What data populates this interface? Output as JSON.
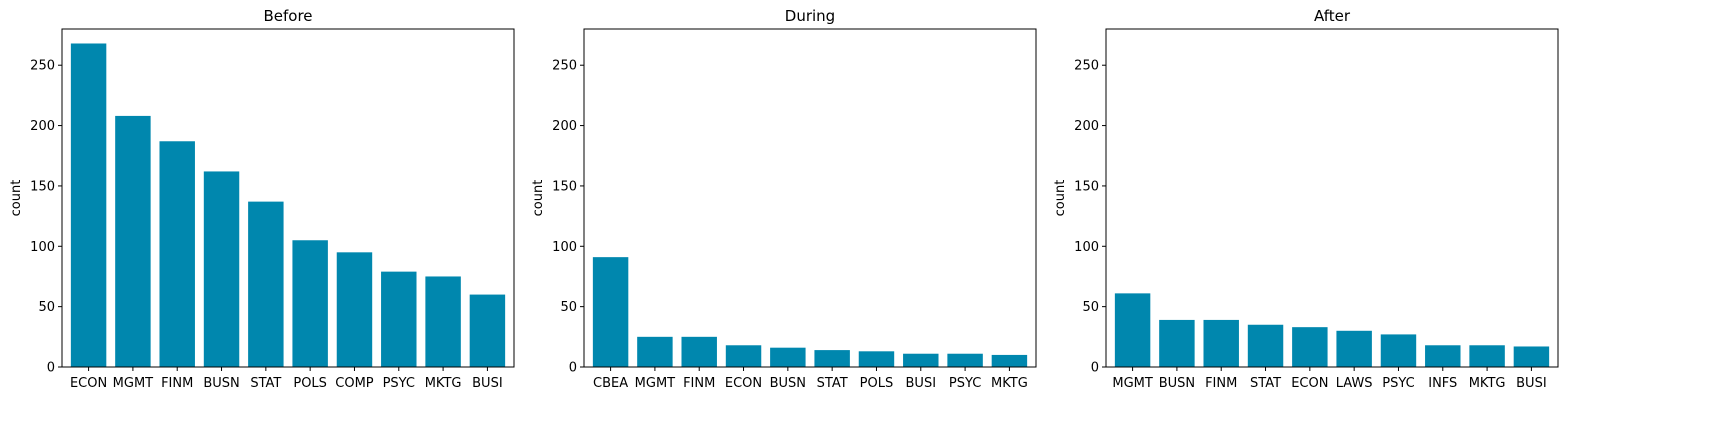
{
  "chart_data": [
    {
      "type": "bar",
      "title": "Before",
      "xlabel": "",
      "ylabel": "count",
      "ylim": [
        0,
        280
      ],
      "yticks": [
        0,
        50,
        100,
        150,
        200,
        250
      ],
      "bar_color": "#0087ae",
      "categories": [
        "ECON",
        "MGMT",
        "FINM",
        "BUSN",
        "STAT",
        "POLS",
        "COMP",
        "PSYC",
        "MKTG",
        "BUSI"
      ],
      "values": [
        268,
        208,
        187,
        162,
        137,
        105,
        95,
        79,
        75,
        60
      ]
    },
    {
      "type": "bar",
      "title": "During",
      "xlabel": "",
      "ylabel": "count",
      "ylim": [
        0,
        280
      ],
      "yticks": [
        0,
        50,
        100,
        150,
        200,
        250
      ],
      "bar_color": "#0087ae",
      "categories": [
        "CBEA",
        "MGMT",
        "FINM",
        "ECON",
        "BUSN",
        "STAT",
        "POLS",
        "BUSI",
        "PSYC",
        "MKTG"
      ],
      "values": [
        91,
        25,
        25,
        18,
        16,
        14,
        13,
        11,
        11,
        10
      ]
    },
    {
      "type": "bar",
      "title": "After",
      "xlabel": "",
      "ylabel": "count",
      "ylim": [
        0,
        280
      ],
      "yticks": [
        0,
        50,
        100,
        150,
        200,
        250
      ],
      "bar_color": "#0087ae",
      "categories": [
        "MGMT",
        "BUSN",
        "FINM",
        "STAT",
        "ECON",
        "LAWS",
        "PSYC",
        "INFS",
        "MKTG",
        "BUSI"
      ],
      "values": [
        61,
        39,
        39,
        35,
        33,
        30,
        27,
        18,
        18,
        17
      ]
    }
  ]
}
